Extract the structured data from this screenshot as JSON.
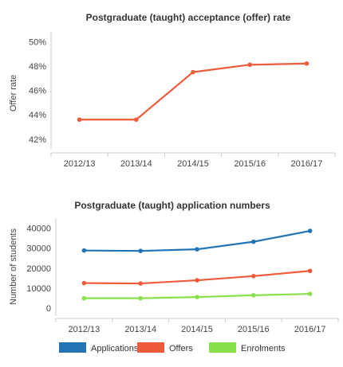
{
  "chart_data": [
    {
      "type": "line",
      "title": "Postgraduate (taught) acceptance (offer) rate",
      "xlabel": "",
      "ylabel": "Offer rate",
      "categories": [
        "2012/13",
        "2013/14",
        "2014/15",
        "2015/16",
        "2016/17"
      ],
      "y_ticks": [
        "42%",
        "44%",
        "46%",
        "48%",
        "50%"
      ],
      "ylim": [
        41.2,
        50.8
      ],
      "grid": false,
      "series": [
        {
          "values": [
            43.6,
            43.6,
            47.5,
            48.1,
            48.2
          ],
          "color": "#ef5a3a"
        }
      ]
    },
    {
      "type": "line",
      "title": "Postgraduate (taught) application numbers",
      "xlabel": "",
      "ylabel": "Number of students",
      "categories": [
        "2012/13",
        "2013/14",
        "2014/15",
        "2015/16",
        "2016/17"
      ],
      "y_ticks": [
        "0",
        "10000",
        "20000",
        "30000",
        "40000"
      ],
      "ylim": [
        -4000,
        45000
      ],
      "grid": false,
      "legend_position": "bottom",
      "series": [
        {
          "name": "Applications",
          "values": [
            28800,
            28600,
            29400,
            33200,
            38600
          ],
          "color": "#2274b4"
        },
        {
          "name": "Offers",
          "values": [
            12500,
            12300,
            13900,
            16000,
            18600
          ],
          "color": "#ef5a3a"
        },
        {
          "name": "Enrolments",
          "values": [
            4900,
            4900,
            5500,
            6400,
            7100
          ],
          "color": "#88e04a"
        }
      ]
    }
  ]
}
